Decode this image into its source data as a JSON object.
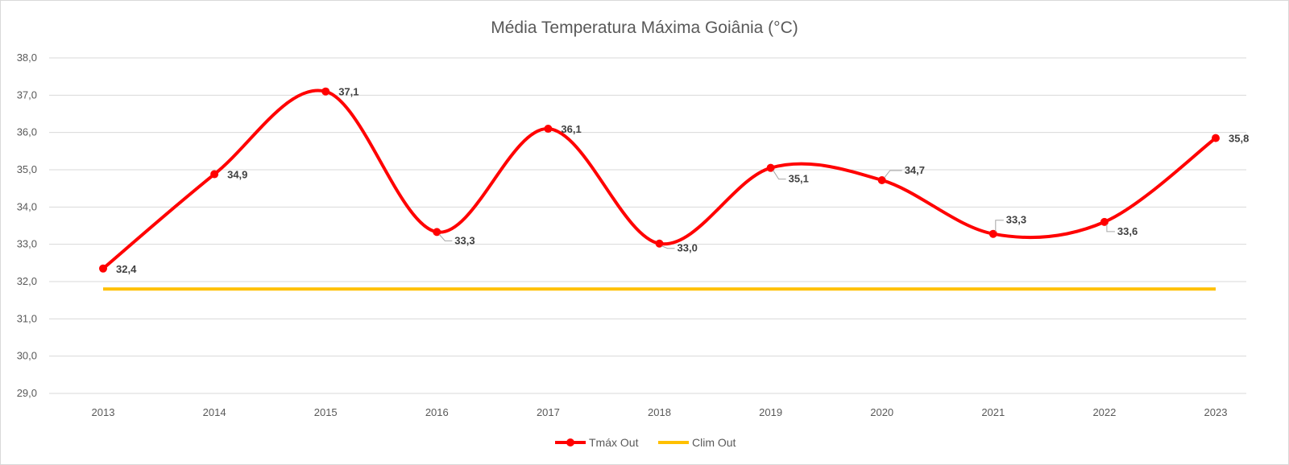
{
  "chart_data": {
    "type": "line",
    "title": "Média Temperatura  Máxima Goiânia (°C)",
    "xlabel": "",
    "ylabel": "",
    "categories": [
      "2013",
      "2014",
      "2015",
      "2016",
      "2017",
      "2018",
      "2019",
      "2020",
      "2021",
      "2022",
      "2023"
    ],
    "ylim": [
      29.0,
      38.0
    ],
    "yticks": [
      29.0,
      30.0,
      31.0,
      32.0,
      33.0,
      34.0,
      35.0,
      36.0,
      37.0,
      38.0
    ],
    "ytick_labels": [
      "29,0",
      "30,0",
      "31,0",
      "32,0",
      "33,0",
      "34,0",
      "35,0",
      "36,0",
      "37,0",
      "38,0"
    ],
    "grid": true,
    "legend_position": "bottom",
    "series": [
      {
        "name": "Tmáx Out",
        "color": "#ff0000",
        "smooth": true,
        "markers": true,
        "values": [
          32.35,
          34.88,
          37.1,
          33.33,
          36.1,
          33.02,
          35.05,
          34.72,
          33.28,
          33.6,
          35.85
        ],
        "data_labels": [
          "32,4",
          "34,9",
          "37,1",
          "33,3",
          "36,1",
          "33,0",
          "35,1",
          "34,7",
          "33,3",
          "33,6",
          "35,8"
        ]
      },
      {
        "name": "Clim Out",
        "color": "#ffc000",
        "smooth": false,
        "markers": false,
        "values": [
          31.8,
          31.8,
          31.8,
          31.8,
          31.8,
          31.8,
          31.8,
          31.8,
          31.8,
          31.8,
          31.8
        ]
      }
    ]
  }
}
